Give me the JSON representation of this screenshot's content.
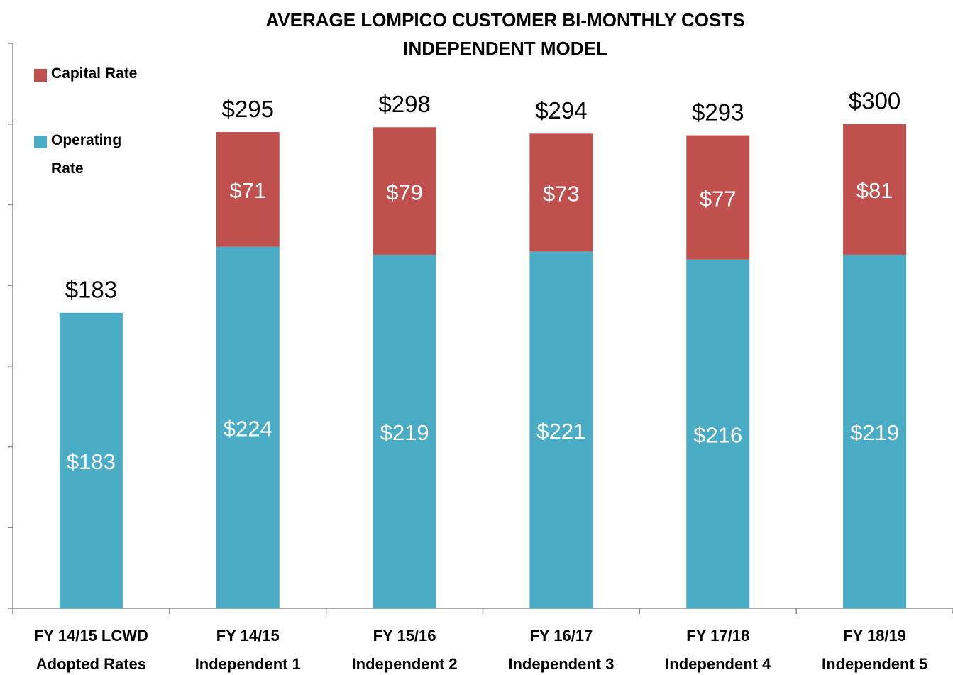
{
  "chart_data": {
    "type": "stacked_bar",
    "title": [
      "AVERAGE LOMPICO CUSTOMER BI-MONTHLY COSTS",
      "INDEPENDENT MODEL"
    ],
    "categories": [
      [
        "FY 14/15 LCWD",
        "Adopted Rates"
      ],
      [
        "FY 14/15",
        "Independent  1"
      ],
      [
        "FY 15/16",
        "Independent  2"
      ],
      [
        "FY 16/17",
        "Independent  3"
      ],
      [
        "FY 17/18",
        "Independent  4"
      ],
      [
        "FY 18/19",
        "Independent  5"
      ]
    ],
    "series": [
      {
        "name": "Operating Rate",
        "color": "#4bacc6",
        "values": [
          183,
          224,
          219,
          221,
          216,
          219
        ],
        "value_labels": [
          "$183",
          "$224",
          "$219",
          "$221",
          "$216",
          "$219"
        ]
      },
      {
        "name": "Capital Rate",
        "color": "#c0504d",
        "values": [
          null,
          71,
          79,
          73,
          77,
          81
        ],
        "value_labels": [
          null,
          "$71",
          "$79",
          "$73",
          "$77",
          "$81"
        ]
      }
    ],
    "totals": {
      "values": [
        183,
        295,
        298,
        294,
        293,
        300
      ],
      "value_labels": [
        "$183",
        "$295",
        "$298",
        "$294",
        "$293",
        "$300"
      ]
    },
    "ylim": [
      0,
      350
    ],
    "yticks": [
      0,
      50,
      100,
      150,
      200,
      250,
      300,
      350
    ],
    "ytick_labels": false,
    "legend": "top-left"
  }
}
